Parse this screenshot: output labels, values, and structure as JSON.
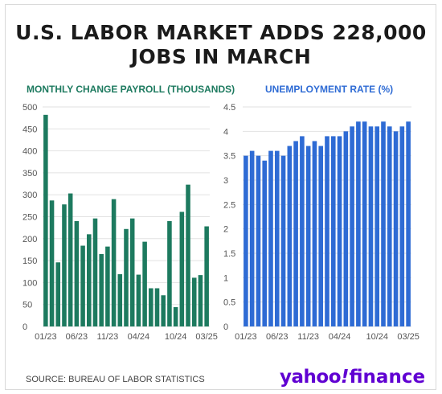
{
  "headline_line1": "U.S. LABOR MARKET ADDS 228,000",
  "headline_line2": "JOBS IN MARCH",
  "source": "SOURCE: BUREAU OF LABOR STATISTICS",
  "logo": {
    "yahoo": "yahoo",
    "bang": "!",
    "finance": "finance"
  },
  "colors": {
    "payroll": "#1d7a5f",
    "unemployment": "#2e6bd4",
    "grid": "#e2e2e2",
    "axis_text": "#555555"
  },
  "chart_data": [
    {
      "type": "bar",
      "title": "MONTHLY CHANGE PAYROLL (THOUSANDS)",
      "xlabel": "",
      "ylabel": "",
      "ylim": [
        0,
        500
      ],
      "yticks": [
        "0",
        "50",
        "100",
        "150",
        "200",
        "250",
        "300",
        "350",
        "400",
        "450",
        "500"
      ],
      "xticks": [
        {
          "index": 0,
          "label": "01/23"
        },
        {
          "index": 5,
          "label": "06/23"
        },
        {
          "index": 10,
          "label": "11/23"
        },
        {
          "index": 15,
          "label": "04/24"
        },
        {
          "index": 21,
          "label": "10/24"
        },
        {
          "index": 26,
          "label": "03/25"
        }
      ],
      "categories": [
        "01/23",
        "02/23",
        "03/23",
        "04/23",
        "05/23",
        "06/23",
        "07/23",
        "08/23",
        "09/23",
        "10/23",
        "11/23",
        "12/23",
        "01/24",
        "02/24",
        "03/24",
        "04/24",
        "05/24",
        "06/24",
        "07/24",
        "08/24",
        "09/24",
        "10/24",
        "11/24",
        "12/24",
        "01/25",
        "02/25",
        "03/25"
      ],
      "values": [
        482,
        287,
        146,
        278,
        303,
        240,
        184,
        210,
        246,
        165,
        182,
        290,
        119,
        222,
        246,
        118,
        193,
        87,
        87,
        71,
        240,
        44,
        261,
        323,
        111,
        117,
        228
      ],
      "grid": true
    },
    {
      "type": "bar",
      "title": "UNEMPLOYMENT RATE (%)",
      "xlabel": "",
      "ylabel": "",
      "ylim": [
        0,
        4.5
      ],
      "yticks": [
        "0",
        "0.5",
        "1",
        "1.5",
        "2",
        "2.5",
        "3",
        "3.5",
        "4",
        "4.5"
      ],
      "xticks": [
        {
          "index": 0,
          "label": "01/23"
        },
        {
          "index": 5,
          "label": "06/23"
        },
        {
          "index": 10,
          "label": "11/23"
        },
        {
          "index": 15,
          "label": "04/24"
        },
        {
          "index": 21,
          "label": "10/24"
        },
        {
          "index": 26,
          "label": "03/25"
        }
      ],
      "categories": [
        "01/23",
        "02/23",
        "03/23",
        "04/23",
        "05/23",
        "06/23",
        "07/23",
        "08/23",
        "09/23",
        "10/23",
        "11/23",
        "12/23",
        "01/24",
        "02/24",
        "03/24",
        "04/24",
        "05/24",
        "06/24",
        "07/24",
        "08/24",
        "09/24",
        "10/24",
        "11/24",
        "12/24",
        "01/25",
        "02/25",
        "03/25"
      ],
      "values": [
        3.5,
        3.6,
        3.5,
        3.4,
        3.6,
        3.6,
        3.5,
        3.7,
        3.8,
        3.9,
        3.7,
        3.8,
        3.7,
        3.9,
        3.9,
        3.9,
        4.0,
        4.1,
        4.2,
        4.2,
        4.1,
        4.1,
        4.2,
        4.1,
        4.0,
        4.1,
        4.2
      ],
      "grid": true
    }
  ]
}
